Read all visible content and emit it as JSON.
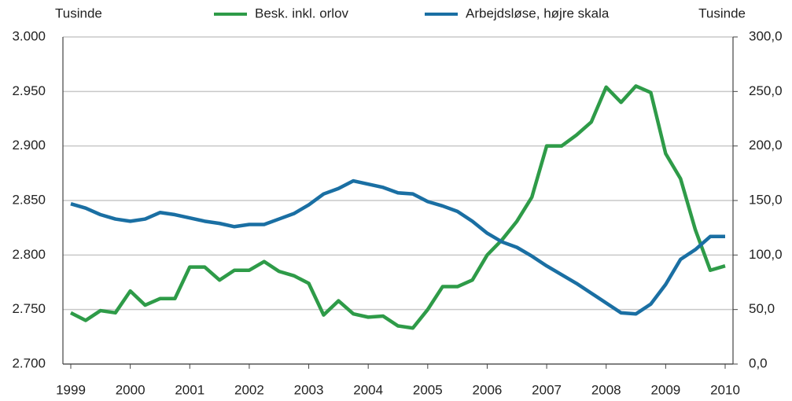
{
  "chart_data": {
    "type": "line",
    "left_axis_label": "Tusinde",
    "right_axis_label": "Tusinde",
    "categories": [
      "1999",
      null,
      null,
      null,
      "2000",
      null,
      null,
      null,
      "2001",
      null,
      null,
      null,
      "2002",
      null,
      null,
      null,
      "2003",
      null,
      null,
      null,
      "2004",
      null,
      null,
      null,
      "2005",
      null,
      null,
      null,
      "2006",
      null,
      null,
      null,
      "2007",
      null,
      null,
      null,
      "2008",
      null,
      null,
      null,
      "2009",
      null,
      null,
      null,
      "2010"
    ],
    "series": [
      {
        "name": "Besk. inkl. orlov",
        "color": "#2e9b48",
        "axis": "y",
        "values": [
          2747,
          2740,
          2749,
          2747,
          2767,
          2754,
          2760,
          2760,
          2789,
          2789,
          2777,
          2786,
          2786,
          2794,
          2785,
          2781,
          2774,
          2745,
          2758,
          2746,
          2743,
          2744,
          2735,
          2733,
          2750,
          2771,
          2771,
          2777,
          2800,
          2814,
          2831,
          2853,
          2900,
          2900,
          2910,
          2922,
          2954,
          2940,
          2955,
          2949,
          2893,
          2870,
          2823,
          2786,
          2790
        ]
      },
      {
        "name": "Arbejdsløse, højre skala",
        "color": "#1a6fa3",
        "axis": "y2",
        "values": [
          147,
          143,
          137,
          133,
          131,
          133,
          139,
          137,
          134,
          131,
          129,
          126,
          128,
          128,
          133,
          138,
          146,
          156,
          161,
          168,
          165,
          162,
          157,
          156,
          149,
          145,
          140,
          131,
          120,
          112,
          107,
          99,
          90,
          82,
          74,
          65,
          56,
          47,
          46,
          55,
          73,
          96,
          105,
          117,
          117
        ]
      }
    ],
    "ylim": [
      2700,
      3000
    ],
    "yticks": [
      {
        "value": 2700,
        "label": "2.700"
      },
      {
        "value": 2750,
        "label": "2.750"
      },
      {
        "value": 2800,
        "label": "2.800"
      },
      {
        "value": 2850,
        "label": "2.850"
      },
      {
        "value": 2900,
        "label": "2.900"
      },
      {
        "value": 2950,
        "label": "2.950"
      },
      {
        "value": 3000,
        "label": "3.000"
      }
    ],
    "y2lim": [
      0,
      300
    ],
    "y2ticks": [
      {
        "value": 0,
        "label": "0,0"
      },
      {
        "value": 50,
        "label": "50,0"
      },
      {
        "value": 100,
        "label": "100,0"
      },
      {
        "value": 150,
        "label": "150,0"
      },
      {
        "value": 200,
        "label": "200,0"
      },
      {
        "value": 250,
        "label": "250,0"
      },
      {
        "value": 300,
        "label": "300,0"
      }
    ],
    "grid": true
  }
}
